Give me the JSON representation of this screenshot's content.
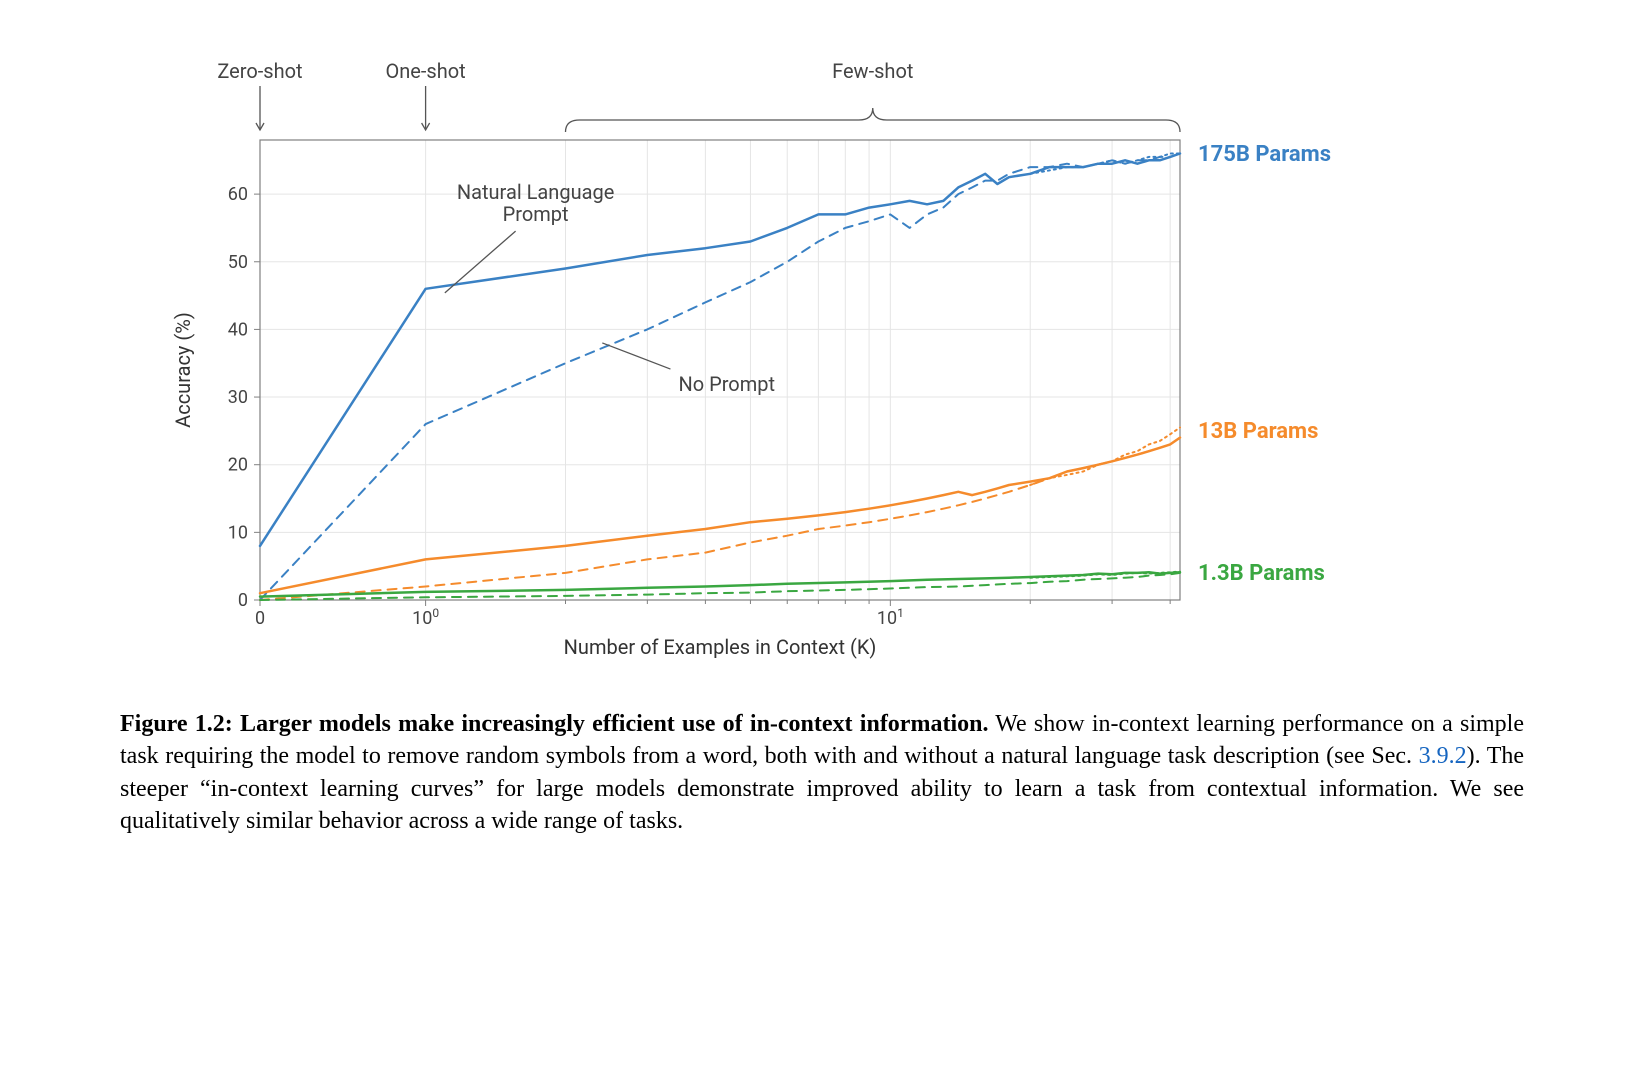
{
  "chart": {
    "type": "line",
    "xlabel": "Number of Examples in Context  (K)",
    "ylabel": "Accuracy (%)",
    "label_fontsize": 20,
    "tick_fontsize": 18,
    "xscale": "symlog",
    "xlim": [
      0,
      42
    ],
    "ylim": [
      0,
      68
    ],
    "ytick_step": 10,
    "yticks": [
      0,
      10,
      20,
      30,
      40,
      50,
      60
    ],
    "xticks_major": [
      0,
      1,
      10
    ],
    "xticks_major_labels": [
      "0",
      "10",
      "10"
    ],
    "xticks_major_exp": [
      "",
      "0",
      "1"
    ],
    "background_color": "#ffffff",
    "grid_color": "#e5e5e5",
    "axis_color": "#808080",
    "line_width_solid": 2.5,
    "line_width_dashed": 2.0,
    "line_width_dotted": 2.0,
    "annotations": {
      "zero_shot": "Zero-shot",
      "one_shot": "One-shot",
      "few_shot": "Few-shot",
      "nat_lang_prompt": "Natural Language\nPrompt",
      "no_prompt": "No Prompt"
    },
    "series_labels": {
      "175b": {
        "text": "175B Params",
        "color": "#3a81c4"
      },
      "13b": {
        "text": "13B Params",
        "color": "#f58b2c"
      },
      "1_3b": {
        "text": "1.3B Params",
        "color": "#3aa741"
      }
    },
    "series": [
      {
        "name": "175B_solid",
        "color": "#3a81c4",
        "style": "solid",
        "x": [
          0,
          1,
          2,
          3,
          4,
          5,
          6,
          7,
          8,
          9,
          10,
          11,
          12,
          13,
          14,
          15,
          16,
          17,
          18,
          20,
          22,
          24,
          26,
          28,
          30,
          32,
          34,
          36,
          38,
          40,
          42
        ],
        "y": [
          8,
          46,
          49,
          51,
          52,
          53,
          55,
          57,
          57,
          58,
          58.5,
          59,
          58.5,
          59,
          61,
          62,
          63,
          61.5,
          62.5,
          63,
          64,
          64,
          64,
          64.5,
          64.5,
          65,
          64.5,
          65,
          65,
          65.5,
          66
        ]
      },
      {
        "name": "175B_dashed",
        "color": "#3a81c4",
        "style": "dashed",
        "x": [
          0,
          1,
          2,
          3,
          4,
          5,
          6,
          7,
          8,
          9,
          10,
          11,
          12,
          13,
          14,
          15,
          16,
          17,
          18,
          20,
          22,
          24,
          26,
          28,
          30,
          32,
          34,
          36,
          38,
          40,
          42
        ],
        "y": [
          0,
          26,
          35,
          40,
          44,
          47,
          50,
          53,
          55,
          56,
          57,
          55,
          57,
          58,
          60,
          61,
          62,
          62,
          63,
          64,
          64,
          64.5,
          64,
          64.5,
          65,
          64.5,
          65,
          65,
          65.5,
          65.5,
          66
        ]
      },
      {
        "name": "175B_dotted",
        "color": "#3a81c4",
        "style": "dotted",
        "x": [
          20,
          22,
          24,
          26,
          28,
          30,
          32,
          34,
          36,
          38,
          40,
          42
        ],
        "y": [
          63,
          63.5,
          64,
          64,
          64.5,
          65,
          64.5,
          65,
          65.5,
          65.5,
          66,
          66
        ]
      },
      {
        "name": "13B_solid",
        "color": "#f58b2c",
        "style": "solid",
        "x": [
          0,
          1,
          2,
          3,
          4,
          5,
          6,
          7,
          8,
          9,
          10,
          11,
          12,
          13,
          14,
          15,
          16,
          17,
          18,
          20,
          22,
          24,
          26,
          28,
          30,
          32,
          34,
          36,
          38,
          40,
          42
        ],
        "y": [
          1,
          6,
          8,
          9.5,
          10.5,
          11.5,
          12,
          12.5,
          13,
          13.5,
          14,
          14.5,
          15,
          15.5,
          16,
          15.5,
          16,
          16.5,
          17,
          17.5,
          18,
          19,
          19.5,
          20,
          20.5,
          21,
          21.5,
          22,
          22.5,
          23,
          24
        ]
      },
      {
        "name": "13B_dashed",
        "color": "#f58b2c",
        "style": "dashed",
        "x": [
          0,
          1,
          2,
          3,
          4,
          5,
          6,
          7,
          8,
          9,
          10,
          11,
          12,
          13,
          14,
          15,
          16,
          18,
          20,
          22,
          24,
          26,
          28,
          30,
          32,
          34,
          36,
          38,
          40,
          42
        ],
        "y": [
          0,
          2,
          4,
          6,
          7,
          8.5,
          9.5,
          10.5,
          11,
          11.5,
          12,
          12.5,
          13,
          13.5,
          14,
          14.5,
          15,
          16,
          17,
          18,
          19,
          19.5,
          20,
          20.5,
          21,
          21.5,
          22,
          22.5,
          23,
          24
        ]
      },
      {
        "name": "13B_dotted",
        "color": "#f58b2c",
        "style": "dotted",
        "x": [
          20,
          22,
          24,
          26,
          28,
          30,
          32,
          34,
          36,
          38,
          40,
          42
        ],
        "y": [
          17,
          18,
          18.5,
          19,
          20,
          20.5,
          21.5,
          22,
          23,
          23.5,
          24.5,
          25.5
        ]
      },
      {
        "name": "1.3B_solid",
        "color": "#3aa741",
        "style": "solid",
        "x": [
          0,
          1,
          2,
          3,
          4,
          5,
          6,
          8,
          10,
          12,
          14,
          16,
          18,
          20,
          22,
          24,
          26,
          28,
          30,
          32,
          34,
          36,
          38,
          40,
          42
        ],
        "y": [
          0.5,
          1.2,
          1.5,
          1.8,
          2,
          2.2,
          2.4,
          2.6,
          2.8,
          3,
          3.1,
          3.2,
          3.3,
          3.4,
          3.5,
          3.6,
          3.7,
          3.9,
          3.8,
          4,
          4,
          4.1,
          3.9,
          4,
          4.1
        ]
      },
      {
        "name": "1.3B_dashed",
        "color": "#3aa741",
        "style": "dashed",
        "x": [
          0,
          1,
          2,
          3,
          4,
          5,
          6,
          8,
          10,
          12,
          14,
          16,
          18,
          20,
          22,
          24,
          26,
          28,
          30,
          32,
          34,
          36,
          38,
          40,
          42
        ],
        "y": [
          0,
          0.4,
          0.6,
          0.8,
          1,
          1.1,
          1.3,
          1.5,
          1.7,
          1.9,
          2,
          2.2,
          2.4,
          2.5,
          2.7,
          2.8,
          3,
          3.1,
          3.2,
          3.3,
          3.4,
          3.6,
          3.7,
          3.8,
          4
        ]
      },
      {
        "name": "1.3B_dotted",
        "color": "#3aa741",
        "style": "dotted",
        "x": [
          20,
          22,
          24,
          26,
          28,
          30,
          32,
          34,
          36,
          38,
          40,
          42
        ],
        "y": [
          3.3,
          3.4,
          3.5,
          3.6,
          3.8,
          3.7,
          3.9,
          4,
          3.9,
          4,
          4.1,
          4.2
        ]
      }
    ]
  },
  "caption": {
    "figure_label": "Figure 1.2: Larger models make increasingly efficient use of in-context information.",
    "body_before_ref": " We show in-context learning performance on a simple task requiring the model to remove random symbols from a word, both with and without a natural language task description (see Sec. ",
    "ref": "3.9.2",
    "body_after_ref": "). The steeper “in-context learning curves” for large models demonstrate improved ability to learn a task from contextual information. We see qualitatively similar behavior across a wide range of tasks."
  }
}
